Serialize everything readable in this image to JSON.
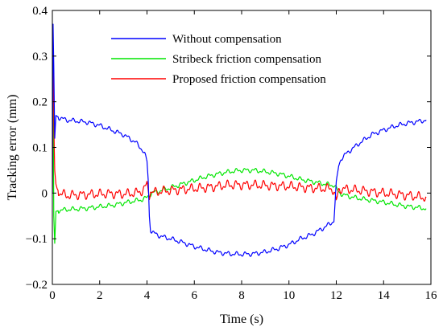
{
  "chart_data": {
    "type": "line",
    "title": "",
    "xlabel": "Time (s)",
    "ylabel": "Tracking error (mm)",
    "xlim": [
      0,
      16
    ],
    "ylim": [
      -0.2,
      0.4
    ],
    "xticks": [
      0,
      2,
      4,
      6,
      8,
      10,
      12,
      14,
      16
    ],
    "yticks": [
      -0.2,
      -0.1,
      0,
      0.1,
      0.2,
      0.3,
      0.4
    ],
    "xtick_labels": [
      "0",
      "2",
      "4",
      "6",
      "8",
      "10",
      "12",
      "14",
      "16"
    ],
    "ytick_labels": [
      "−0.2",
      "−0.1",
      "0",
      "0.1",
      "0.2",
      "0.3",
      "0.4"
    ],
    "grid": false,
    "legend_position": "top-center",
    "series": [
      {
        "name": "Without compensation",
        "color": "#0000ff",
        "x": [
          0,
          0.03,
          0.06,
          0.1,
          0.15,
          0.3,
          0.6,
          1.0,
          1.5,
          2.0,
          2.5,
          3.0,
          3.5,
          3.8,
          3.9,
          4.0,
          4.05,
          4.1,
          4.15,
          4.2,
          4.3,
          4.6,
          5.0,
          5.5,
          6.0,
          6.5,
          7.0,
          7.5,
          8.0,
          8.5,
          9.0,
          9.5,
          10.0,
          10.5,
          11.0,
          11.5,
          11.8,
          11.9,
          12.0,
          12.1,
          12.2,
          12.5,
          13.0,
          13.5,
          14.0,
          14.5,
          15.0,
          15.5,
          15.8
        ],
        "y": [
          0.0,
          0.37,
          0.28,
          0.12,
          0.17,
          0.165,
          0.16,
          0.158,
          0.155,
          0.148,
          0.138,
          0.128,
          0.112,
          0.095,
          0.085,
          0.07,
          0.03,
          -0.05,
          -0.08,
          -0.085,
          -0.088,
          -0.095,
          -0.1,
          -0.108,
          -0.117,
          -0.124,
          -0.13,
          -0.133,
          -0.134,
          -0.133,
          -0.129,
          -0.122,
          -0.113,
          -0.1,
          -0.09,
          -0.075,
          -0.065,
          -0.06,
          0.02,
          0.06,
          0.075,
          0.09,
          0.11,
          0.128,
          0.138,
          0.147,
          0.153,
          0.157,
          0.16
        ]
      },
      {
        "name": "Stribeck friction compensation",
        "color": "#00e600",
        "x": [
          0,
          0.03,
          0.06,
          0.1,
          0.15,
          0.3,
          0.6,
          1.0,
          1.5,
          2.0,
          2.5,
          3.0,
          3.5,
          3.8,
          3.9,
          4.0,
          4.1,
          4.2,
          4.5,
          5.0,
          5.5,
          6.0,
          6.5,
          7.0,
          7.5,
          8.0,
          8.5,
          9.0,
          9.5,
          10.0,
          10.5,
          11.0,
          11.5,
          11.9,
          12.0,
          12.1,
          12.3,
          12.6,
          13.0,
          13.5,
          14.0,
          14.5,
          15.0,
          15.5,
          15.8
        ],
        "y": [
          0.0,
          0.29,
          -0.05,
          -0.11,
          -0.04,
          -0.038,
          -0.036,
          -0.035,
          -0.033,
          -0.03,
          -0.027,
          -0.022,
          -0.017,
          -0.014,
          -0.012,
          -0.01,
          -0.004,
          0.0,
          0.004,
          0.012,
          0.02,
          0.028,
          0.036,
          0.042,
          0.047,
          0.05,
          0.05,
          0.047,
          0.043,
          0.037,
          0.03,
          0.025,
          0.02,
          0.017,
          0.01,
          0.002,
          -0.004,
          -0.008,
          -0.012,
          -0.016,
          -0.02,
          -0.025,
          -0.029,
          -0.032,
          -0.034
        ]
      },
      {
        "name": "Proposed friction compensation",
        "color": "#ff0000",
        "x": [
          0,
          0.02,
          0.04,
          0.06,
          0.08,
          0.1,
          0.15,
          0.2,
          0.3,
          0.6,
          1.0,
          1.5,
          2.0,
          2.5,
          3.0,
          3.5,
          3.8,
          3.9,
          4.0,
          4.05,
          4.1,
          4.15,
          4.2,
          4.3,
          4.6,
          5.0,
          5.5,
          6.0,
          6.5,
          7.0,
          7.5,
          8.0,
          8.5,
          9.0,
          9.5,
          10.0,
          10.5,
          11.0,
          11.5,
          11.8,
          11.9,
          12.0,
          12.1,
          12.2,
          12.5,
          13.0,
          13.5,
          14.0,
          14.5,
          15.0,
          15.5,
          15.8
        ],
        "y": [
          0.0,
          0.27,
          0.3,
          0.18,
          0.1,
          0.05,
          0.02,
          0.01,
          0.0,
          -0.005,
          -0.004,
          -0.003,
          -0.002,
          -0.001,
          -0.002,
          0.0,
          0.005,
          0.01,
          0.02,
          0.005,
          -0.005,
          0.01,
          0.0,
          0.002,
          0.004,
          0.006,
          0.008,
          0.01,
          0.012,
          0.015,
          0.018,
          0.018,
          0.018,
          0.017,
          0.016,
          0.015,
          0.013,
          0.011,
          0.01,
          0.01,
          0.005,
          -0.02,
          0.005,
          0.01,
          0.008,
          0.006,
          0.003,
          0.0,
          -0.002,
          -0.005,
          -0.008,
          -0.01
        ]
      }
    ]
  }
}
